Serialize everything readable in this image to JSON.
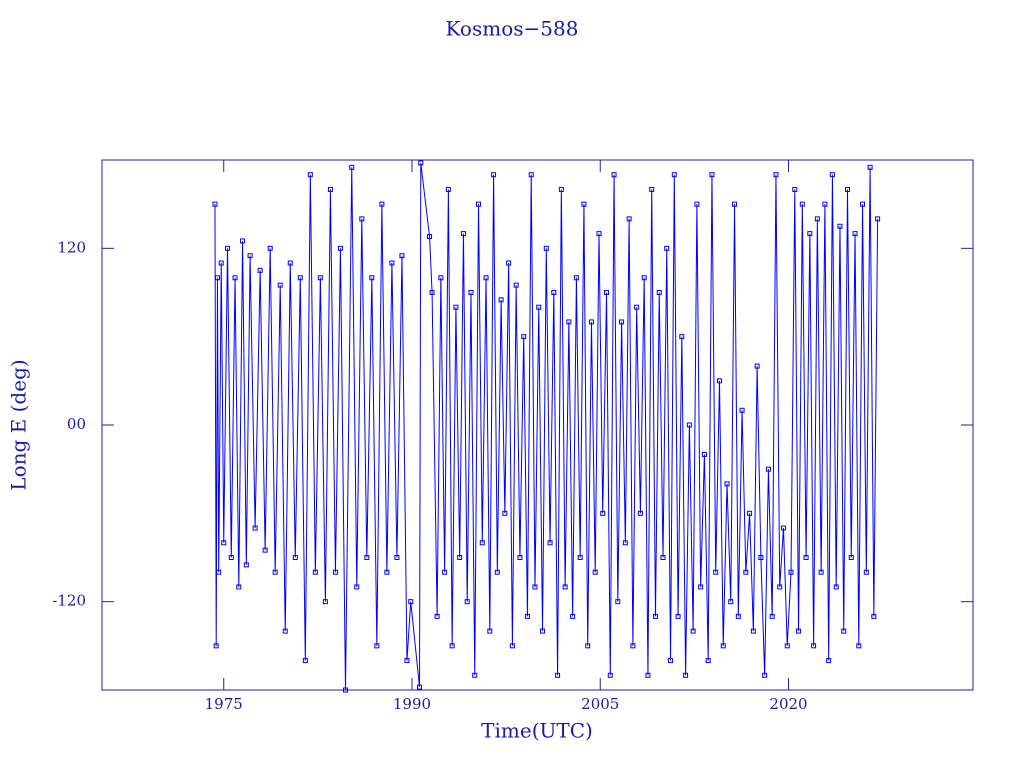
{
  "chart_data": {
    "type": "line",
    "title": "Kosmos−588",
    "x_label": "Time(UTC)",
    "y_label": "Long E (deg)",
    "xlim": [
      1965.3,
      2034.7
    ],
    "xticks": [
      1975,
      1990,
      2005,
      2020
    ],
    "ylim": [
      -180,
      180
    ],
    "yticks": [
      -120,
      {
        "value": 0,
        "label": "00"
      },
      120
    ],
    "marker": "square",
    "x": [
      1974.3,
      1974.4,
      1974.5,
      1974.6,
      1974.8,
      1975.0,
      1975.3,
      1975.6,
      1975.9,
      1976.2,
      1976.5,
      1976.8,
      1977.1,
      1977.5,
      1977.9,
      1978.3,
      1978.7,
      1979.1,
      1979.5,
      1979.9,
      1980.3,
      1980.7,
      1981.1,
      1981.5,
      1981.9,
      1982.3,
      1982.7,
      1983.1,
      1983.5,
      1983.9,
      1984.3,
      1984.7,
      1985.2,
      1985.6,
      1986.0,
      1986.4,
      1986.8,
      1987.2,
      1987.6,
      1988.0,
      1988.4,
      1988.8,
      1989.2,
      1989.6,
      1989.9,
      1990.6,
      1990.7,
      1991.4,
      1991.6,
      1992.0,
      1992.3,
      1992.6,
      1992.9,
      1993.2,
      1993.5,
      1993.8,
      1994.1,
      1994.4,
      1994.7,
      1995.0,
      1995.3,
      1995.6,
      1995.9,
      1996.2,
      1996.5,
      1996.8,
      1997.1,
      1997.4,
      1997.7,
      1998.0,
      1998.3,
      1998.6,
      1998.9,
      1999.2,
      1999.5,
      1999.8,
      2000.1,
      2000.4,
      2000.7,
      2001.0,
      2001.3,
      2001.6,
      2001.9,
      2002.2,
      2002.5,
      2002.8,
      2003.1,
      2003.4,
      2003.7,
      2004.0,
      2004.3,
      2004.6,
      2004.9,
      2005.2,
      2005.5,
      2005.8,
      2006.1,
      2006.4,
      2006.7,
      2007.0,
      2007.3,
      2007.6,
      2007.9,
      2008.2,
      2008.5,
      2008.8,
      2009.1,
      2009.4,
      2009.7,
      2010.0,
      2010.3,
      2010.6,
      2010.9,
      2011.2,
      2011.5,
      2011.8,
      2012.1,
      2012.4,
      2012.7,
      2013.0,
      2013.3,
      2013.6,
      2013.9,
      2014.2,
      2014.5,
      2014.8,
      2015.1,
      2015.4,
      2015.7,
      2016.0,
      2016.3,
      2016.6,
      2016.9,
      2017.2,
      2017.5,
      2017.8,
      2018.1,
      2018.4,
      2018.7,
      2019.0,
      2019.3,
      2019.6,
      2019.9,
      2020.2,
      2020.5,
      2020.8,
      2021.1,
      2021.4,
      2021.7,
      2022.0,
      2022.3,
      2022.6,
      2022.9,
      2023.2,
      2023.5,
      2023.8,
      2024.1,
      2024.4,
      2024.7,
      2025.0,
      2025.3,
      2025.6,
      2025.9,
      2026.2,
      2026.5,
      2026.8,
      2027.1
    ],
    "series": [
      {
        "color": "#0000ff",
        "values": [
          150,
          -150,
          100,
          -100,
          110,
          -80,
          120,
          -90,
          100,
          -110,
          125,
          -95,
          115,
          -70,
          105,
          -85,
          120,
          -100,
          95,
          -140,
          110,
          -90,
          100,
          -160,
          170,
          -100,
          100,
          -120,
          160,
          -100,
          120,
          -180,
          175,
          -110,
          140,
          -90,
          100,
          -150,
          150,
          -100,
          110,
          -90,
          115,
          -160,
          -120,
          -178,
          178,
          128,
          90,
          -130,
          100,
          -100,
          160,
          -150,
          80,
          -90,
          130,
          -120,
          90,
          -170,
          150,
          -80,
          100,
          -140,
          170,
          -100,
          85,
          -60,
          110,
          -150,
          95,
          -90,
          60,
          -130,
          170,
          -110,
          80,
          -140,
          120,
          -80,
          90,
          -170,
          160,
          -110,
          70,
          -130,
          100,
          -90,
          150,
          -150,
          70,
          -100,
          130,
          -60,
          90,
          -170,
          170,
          -120,
          70,
          -80,
          140,
          -150,
          80,
          -60,
          100,
          -170,
          160,
          -130,
          90,
          -90,
          120,
          -160,
          170,
          -130,
          60,
          -170,
          0,
          -140,
          150,
          -110,
          -20,
          -160,
          170,
          -100,
          30,
          -150,
          -40,
          -120,
          150,
          -130,
          10,
          -100,
          -60,
          -140,
          40,
          -90,
          -170,
          -30,
          -130,
          170,
          -110,
          -70,
          -150,
          -100,
          160,
          -140,
          150,
          -90,
          130,
          -150,
          140,
          -100,
          150,
          -160,
          170,
          -110,
          135,
          -140,
          160,
          -90,
          130,
          -150,
          150,
          -100,
          175,
          -130,
          140
        ]
      }
    ]
  }
}
